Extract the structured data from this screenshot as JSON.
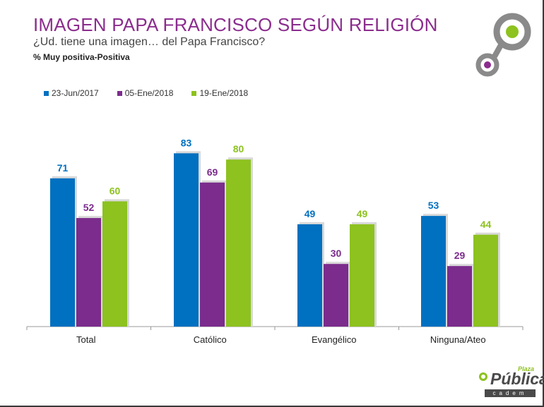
{
  "header": {
    "title": "IMAGEN PAPA FRANCISCO SEGÚN RELIGIÓN",
    "subtitle": "¿Ud. tiene una imagen… del Papa Francisco?",
    "note": "% Muy positiva-Positiva"
  },
  "brand": {
    "plaza": "Plaza",
    "word": "Pública",
    "sub": "cadem"
  },
  "colors": {
    "title": "#8b2d8e",
    "ring_gray": "#8a8a8a",
    "ring_green": "#8dc21f",
    "ring_purple": "#8b2d8e"
  },
  "chart_data": {
    "type": "bar",
    "categories": [
      "Total",
      "Católico",
      "Evangélico",
      "Ninguna/Ateo"
    ],
    "series": [
      {
        "name": "23-Jun/2017",
        "color": "#0070c0",
        "values": [
          71,
          83,
          49,
          53
        ]
      },
      {
        "name": "05-Ene/2018",
        "color": "#7b2c8c",
        "values": [
          52,
          69,
          30,
          29
        ]
      },
      {
        "name": "19-Ene/2018",
        "color": "#8dc21f",
        "values": [
          60,
          80,
          49,
          44
        ]
      }
    ],
    "legend_position": "top-left",
    "grid": false,
    "data_labels": true
  }
}
